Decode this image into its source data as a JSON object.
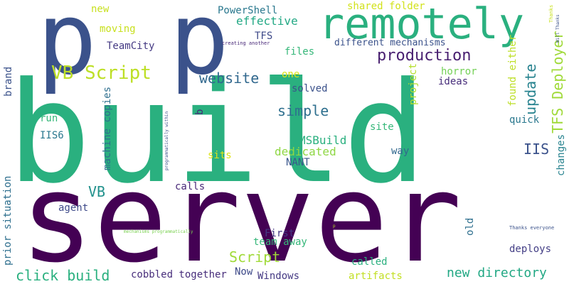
{
  "word_cloud": {
    "words": [
      {
        "text": "build",
        "color": "#2ab07f",
        "vertical": false
      },
      {
        "text": "server",
        "color": "#440154",
        "vertical": false
      },
      {
        "text": "p",
        "color": "#3b528b",
        "vertical": false
      },
      {
        "text": "p",
        "color": "#3b528b",
        "vertical": false
      },
      {
        "text": "remotely",
        "color": "#2ab07f",
        "vertical": false
      },
      {
        "text": "VB Script",
        "color": "#bddf26",
        "vertical": false
      },
      {
        "text": "production",
        "color": "#481f70",
        "vertical": false
      },
      {
        "text": "website",
        "color": "#31688e",
        "vertical": false
      },
      {
        "text": "simple",
        "color": "#2e6f8e",
        "vertical": false
      },
      {
        "text": "update",
        "color": "#26828e",
        "vertical": true
      },
      {
        "text": "TFS Deployer",
        "color": "#a0da39",
        "vertical": true
      },
      {
        "text": "IIS",
        "color": "#3b528b",
        "vertical": false
      },
      {
        "text": "VB",
        "color": "#21918c",
        "vertical": false
      },
      {
        "text": "Script",
        "color": "#a0da39",
        "vertical": false
      },
      {
        "text": "click build",
        "color": "#2ab07f",
        "vertical": false
      },
      {
        "text": "new directory",
        "color": "#22a884",
        "vertical": false
      },
      {
        "text": "new",
        "color": "#c8e020",
        "vertical": false
      },
      {
        "text": "PowerShell",
        "color": "#2a788e",
        "vertical": false
      },
      {
        "text": "shared folder",
        "color": "#d2e21b",
        "vertical": false
      },
      {
        "text": "moving",
        "color": "#c8e020",
        "vertical": false
      },
      {
        "text": "effective",
        "color": "#22a884",
        "vertical": false
      },
      {
        "text": "TFS",
        "color": "#3e4a89",
        "vertical": false
      },
      {
        "text": "TeamCity",
        "color": "#443983",
        "vertical": false
      },
      {
        "text": "creating another",
        "color": "#482878",
        "vertical": false
      },
      {
        "text": "different mechanisms",
        "color": "#3b528b",
        "vertical": false
      },
      {
        "text": "files",
        "color": "#35b779",
        "vertical": false
      },
      {
        "text": "one",
        "color": "#dde318",
        "vertical": false
      },
      {
        "text": "horror",
        "color": "#73d056",
        "vertical": false
      },
      {
        "text": "ideas",
        "color": "#472d7b",
        "vertical": false
      },
      {
        "text": "solved",
        "color": "#3b528b",
        "vertical": false
      },
      {
        "text": "brand",
        "color": "#3b528b",
        "vertical": true
      },
      {
        "text": "run",
        "color": "#35b779",
        "vertical": false
      },
      {
        "text": "IIS6",
        "color": "#2a788e",
        "vertical": false
      },
      {
        "text": "MSBuild",
        "color": "#2ab07f",
        "vertical": false
      },
      {
        "text": "dedicated",
        "color": "#8fd744",
        "vertical": false
      },
      {
        "text": "NANT",
        "color": "#39568c",
        "vertical": false
      },
      {
        "text": "site",
        "color": "#35b779",
        "vertical": false
      },
      {
        "text": "quick",
        "color": "#2a788e",
        "vertical": false
      },
      {
        "text": "way",
        "color": "#31688e",
        "vertical": false
      },
      {
        "text": "sits",
        "color": "#dde318",
        "vertical": false
      },
      {
        "text": "calls",
        "color": "#482878",
        "vertical": false
      },
      {
        "text": "agent",
        "color": "#3e4a89",
        "vertical": false
      },
      {
        "text": "First",
        "color": "#443983",
        "vertical": false
      },
      {
        "text": "team away",
        "color": "#35b779",
        "vertical": false
      },
      {
        "text": "called",
        "color": "#2ab07f",
        "vertical": false
      },
      {
        "text": "deploys",
        "color": "#433e85",
        "vertical": false
      },
      {
        "text": "Now",
        "color": "#3e4a89",
        "vertical": false
      },
      {
        "text": "cobbled together",
        "color": "#472d7b",
        "vertical": false
      },
      {
        "text": "Windows",
        "color": "#443983",
        "vertical": false
      },
      {
        "text": "artifacts",
        "color": "#c2df23",
        "vertical": false
      },
      {
        "text": "old",
        "color": "#2e6f8e",
        "vertical": true
      },
      {
        "text": "b",
        "color": "#482878",
        "vertical": true
      },
      {
        "text": "project",
        "color": "#b5de2b",
        "vertical": true
      },
      {
        "text": "found either",
        "color": "#bddf26",
        "vertical": true
      },
      {
        "text": "changes",
        "color": "#26828e",
        "vertical": true
      },
      {
        "text": "machine copies",
        "color": "#2e6f8e",
        "vertical": true
      },
      {
        "text": "prior situation",
        "color": "#2e6f8e",
        "vertical": true
      },
      {
        "text": "programmatically within",
        "color": "#3b528b",
        "vertical": true
      },
      {
        "text": "mechanisms programmatically",
        "color": "#7ad151",
        "vertical": false
      },
      {
        "text": "Thanks everyone",
        "color": "#3b528b",
        "vertical": false
      },
      {
        "text": "Thanks",
        "color": "#c8e020",
        "vertical": true
      },
      {
        "text": "Will Thanks",
        "color": "#3b528b",
        "vertical": true
      },
      {
        "text": "p",
        "color": "#b5de2b",
        "vertical": false
      }
    ]
  }
}
